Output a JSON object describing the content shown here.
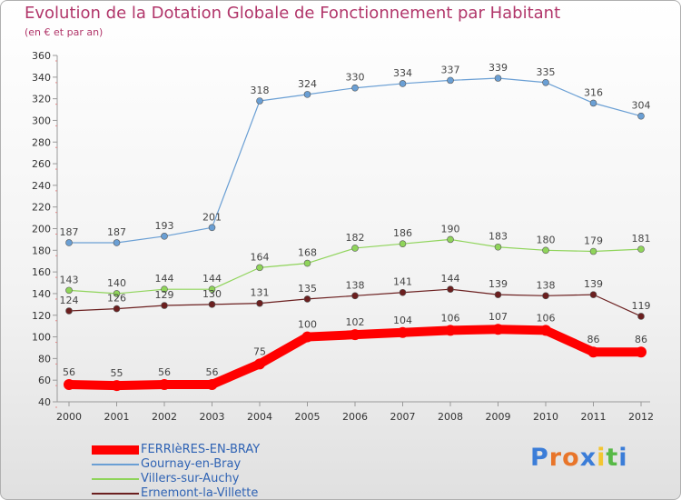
{
  "chart_data": {
    "type": "line",
    "title": "Evolution de la Dotation Globale de Fonctionnement par Habitant",
    "subtitle": "(en € et par an)",
    "x": [
      "2000",
      "2001",
      "2002",
      "2003",
      "2004",
      "2005",
      "2006",
      "2007",
      "2008",
      "2009",
      "2010",
      "2011",
      "2012"
    ],
    "ylim": [
      40,
      360
    ],
    "yticks": [
      40,
      60,
      80,
      100,
      120,
      140,
      160,
      180,
      200,
      220,
      240,
      260,
      280,
      300,
      320,
      340,
      360
    ],
    "grid": false,
    "series": [
      {
        "name": "FERRIèRES-EN-BRAY",
        "color": "#ff0000",
        "values": [
          56,
          55,
          56,
          56,
          75,
          100,
          102,
          104,
          106,
          107,
          106,
          86,
          86
        ]
      },
      {
        "name": "Gournay-en-Bray",
        "color": "#6a9fd4",
        "values": [
          187,
          187,
          193,
          201,
          318,
          324,
          330,
          334,
          337,
          339,
          335,
          316,
          304
        ]
      },
      {
        "name": "Villers-sur-Auchy",
        "color": "#8fd45a",
        "values": [
          143,
          140,
          144,
          144,
          164,
          168,
          182,
          186,
          190,
          183,
          180,
          179,
          181
        ]
      },
      {
        "name": "Ernemont-la-Villette",
        "color": "#6b1f1f",
        "values": [
          124,
          126,
          129,
          130,
          131,
          135,
          138,
          141,
          144,
          139,
          138,
          139,
          119
        ]
      }
    ],
    "legend": "bottom-left"
  },
  "brand": {
    "letters": [
      "P",
      "r",
      "o",
      "x",
      "i",
      "t",
      "i"
    ],
    "colors": [
      "#3b7dd8",
      "#e8752a",
      "#e8752a",
      "#3b7dd8",
      "#f3c530",
      "#58b947",
      "#3b7dd8"
    ]
  }
}
